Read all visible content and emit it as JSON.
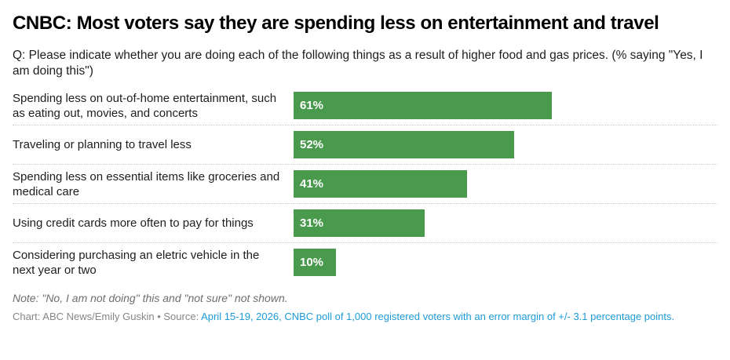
{
  "header": {
    "title": "CNBC: Most voters say they are spending less on entertainment and travel",
    "subtitle": "Q: Please indicate whether you are doing each of the following things as a result of higher food and gas prices. (% saying \"Yes, I am doing this\")"
  },
  "chart_data": {
    "type": "bar",
    "orientation": "horizontal",
    "title": "CNBC: Most voters say they are spending less on entertainment and travel",
    "subtitle": "Q: Please indicate whether you are doing each of the following things as a result of higher food and gas prices. (% saying \"Yes, I am doing this\")",
    "categories": [
      "Spending less on out-of-home entertainment, such as eating out, movies, and concerts",
      "Traveling or planning to travel less",
      "Spending less on essential items like groceries and medical care",
      "Using credit cards more often to pay for things",
      "Considering purchasing an eletric vehicle in the next year or two"
    ],
    "values": [
      61,
      52,
      41,
      31,
      10
    ],
    "value_labels": [
      "61%",
      "52%",
      "41%",
      "31%",
      "10%"
    ],
    "xlim": [
      0,
      100
    ],
    "grid": false,
    "legend": "none",
    "bar_color": "#4a9a4e",
    "value_label_position": "inside-left"
  },
  "footer": {
    "note": "Note: \"No, I am not doing\" this and \"not sure\" not shown.",
    "byline": "Chart: ABC News/Emily Guskin • Source: ",
    "source_link": "April 15-19, 2026, CNBC poll of 1,000 registered voters with an error margin of +/- 3.1 percentage points."
  },
  "colors": {
    "bar_green": "#4a9a4e",
    "bar_value_text": "#ffffff",
    "title_text": "#000000",
    "body_text": "#1d1d1d",
    "note_gray": "#6e6e6e",
    "byline_gray": "#868686",
    "link_blue": "#1d9bd7",
    "separator_gray": "#c9c9c9",
    "background": "#ffffff"
  }
}
